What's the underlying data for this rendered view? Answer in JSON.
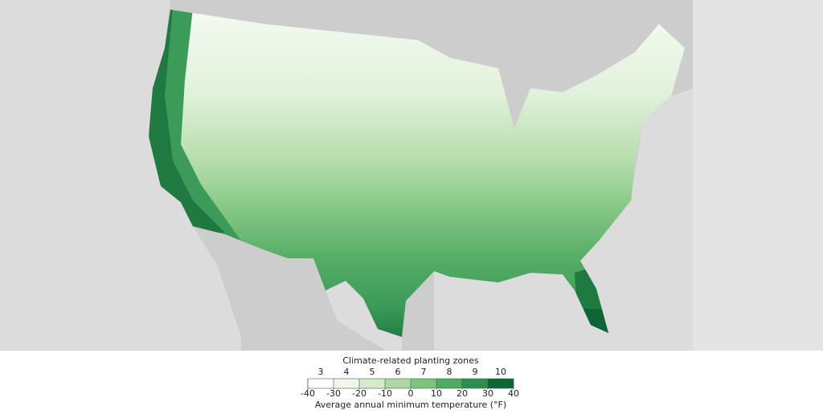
{
  "legend": {
    "title": "Climate-related planting zones",
    "zones": [
      3,
      4,
      5,
      6,
      7,
      8,
      9,
      10
    ],
    "colors": [
      "#ffffff",
      "#eef7ea",
      "#d3ebca",
      "#acd9a2",
      "#7cc47b",
      "#4eab62",
      "#2d8f4f",
      "#0b6535"
    ],
    "ticks": [
      -40,
      -30,
      -20,
      -10,
      0,
      10,
      20,
      30,
      40
    ],
    "axis_label": "Average annual minimum temperature (°F)"
  }
}
